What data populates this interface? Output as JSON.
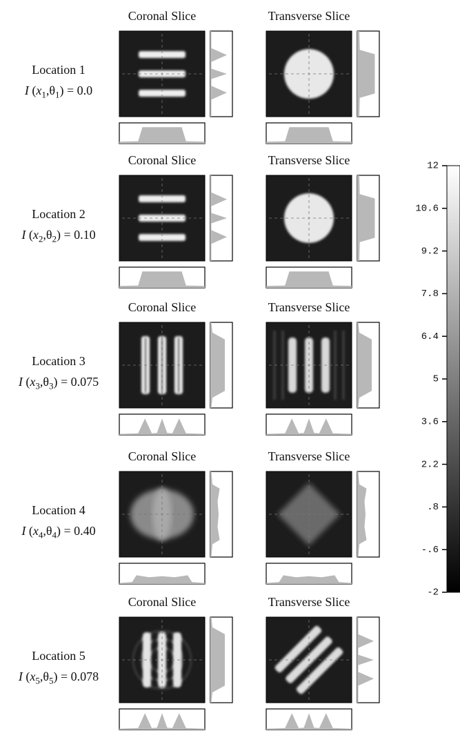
{
  "rows": [
    {
      "label": "Location 1",
      "titles": [
        "Coronal Slice",
        "Transverse Slice"
      ],
      "formula": [
        {
          "text": "I",
          "italic": true
        },
        {
          "text": " ("
        },
        {
          "text": "x",
          "italic": true
        },
        {
          "text": "1",
          "sub": true
        },
        {
          "text": ",θ"
        },
        {
          "text": "1",
          "sub": true
        },
        {
          "text": ") = 0.0"
        }
      ]
    },
    {
      "label": "Location 2",
      "titles": [
        "Coronal Slice",
        "Transverse Slice"
      ],
      "formula": [
        {
          "text": "I",
          "italic": true
        },
        {
          "text": " ("
        },
        {
          "text": "x",
          "italic": true
        },
        {
          "text": "2",
          "sub": true
        },
        {
          "text": ",θ"
        },
        {
          "text": "2",
          "sub": true
        },
        {
          "text": ") = 0.10"
        }
      ]
    },
    {
      "label": "Location 3",
      "titles": [
        "Coronal Slice",
        "Transverse Slice"
      ],
      "formula": [
        {
          "text": "I",
          "italic": true
        },
        {
          "text": " ("
        },
        {
          "text": "x",
          "italic": true
        },
        {
          "text": "3",
          "sub": true
        },
        {
          "text": ",θ"
        },
        {
          "text": "3",
          "sub": true
        },
        {
          "text": ") = 0.075"
        }
      ]
    },
    {
      "label": "Location 4",
      "titles": [
        "Coronal Slice",
        "Transverse Slice"
      ],
      "formula": [
        {
          "text": "I",
          "italic": true
        },
        {
          "text": " ("
        },
        {
          "text": "x",
          "italic": true
        },
        {
          "text": "4",
          "sub": true
        },
        {
          "text": ",θ"
        },
        {
          "text": "4",
          "sub": true
        },
        {
          "text": ") = 0.40"
        }
      ]
    },
    {
      "label": "Location 5",
      "titles": [
        "Coronal Slice",
        "Transverse Slice"
      ],
      "formula": [
        {
          "text": "I",
          "italic": true
        },
        {
          "text": " ("
        },
        {
          "text": "x",
          "italic": true
        },
        {
          "text": "5",
          "sub": true
        },
        {
          "text": ",θ"
        },
        {
          "text": "5",
          "sub": true
        },
        {
          "text": ") = 0.078"
        }
      ]
    }
  ],
  "colorbar": {
    "lim": [
      -2,
      12
    ],
    "ticks": [
      12,
      10.6,
      9.2,
      7.8,
      6.4,
      5,
      3.6,
      2.2,
      {
        "value": 0.8,
        "label": ".8"
      },
      {
        "value": -0.6,
        "label": "-.6"
      },
      -2
    ]
  }
}
